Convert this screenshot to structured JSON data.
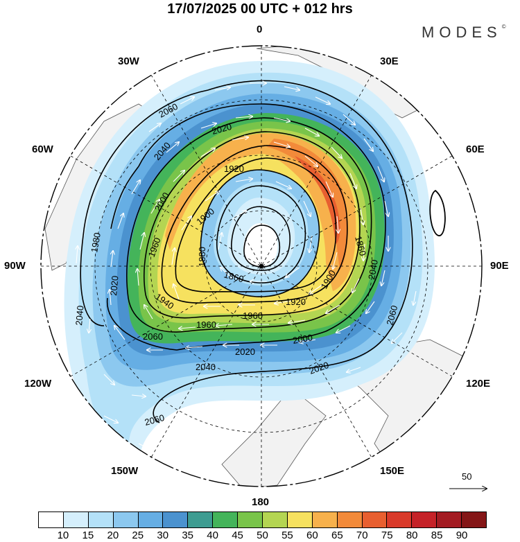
{
  "title": "17/07/2025  00 UTC  + 012 hrs",
  "brand": "MODES",
  "brand_mark": "©",
  "longitude_labels": {
    "n": "0",
    "s": "180",
    "w": "90W",
    "e": "90E",
    "nw30": "30W",
    "ne30": "30E",
    "nw60": "60W",
    "ne60": "60E",
    "sw120": "120W",
    "se120": "120E",
    "sw150": "150W",
    "se150": "150E"
  },
  "contour_labels": [
    "2060",
    "2040",
    "2020",
    "2000",
    "1960",
    "1920",
    "1900",
    "1880",
    "1860",
    "1940",
    "1980",
    "1960",
    "2020",
    "2040",
    "2060",
    "2040",
    "2020",
    "2000",
    "1960",
    "1920",
    "1900",
    "1860",
    "2060",
    "2040",
    "2020"
  ],
  "reference_vector": {
    "label": "50"
  },
  "colorbar": {
    "ticks": [
      "10",
      "15",
      "20",
      "25",
      "30",
      "35",
      "40",
      "45",
      "50",
      "55",
      "60",
      "65",
      "70",
      "75",
      "80",
      "85",
      "90"
    ],
    "colors": [
      "#ffffff",
      "#d5effc",
      "#b4e1f8",
      "#8cc8ef",
      "#66aee4",
      "#4b92cf",
      "#3e9c91",
      "#44b45a",
      "#79c44a",
      "#b4d552",
      "#f6e15f",
      "#f7b14c",
      "#f28a3a",
      "#e85f30",
      "#d93a2a",
      "#c52228",
      "#a31b22",
      "#841617"
    ]
  },
  "colors": {
    "land": "#f2f2f2",
    "coast": "#555555",
    "contour": "#000000",
    "arrow": "#ffffff"
  }
}
